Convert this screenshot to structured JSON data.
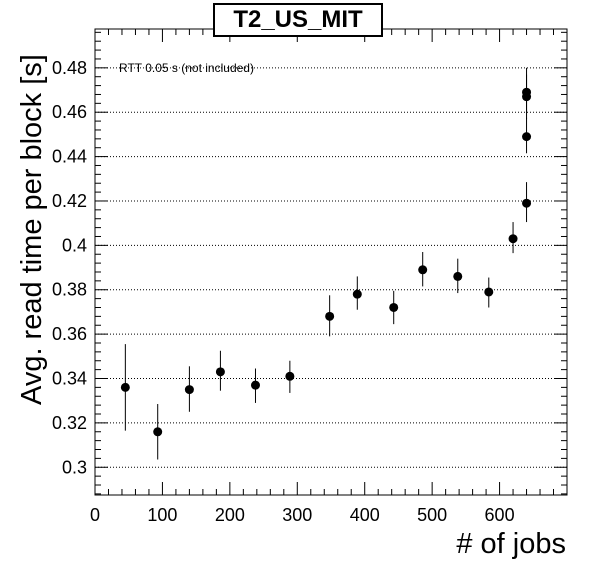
{
  "chart_data": {
    "type": "scatter",
    "title": "T2_US_MIT",
    "xlabel": "# of jobs",
    "ylabel": "Avg. read time per block [s]",
    "annotation": "RTT 0.05 s (not included)",
    "xlim": [
      0,
      700
    ],
    "ylim": [
      0.2875,
      0.4975
    ],
    "x_ticks": [
      "0",
      "100",
      "200",
      "300",
      "400",
      "500",
      "600"
    ],
    "y_ticks": [
      "0.3",
      "0.32",
      "0.34",
      "0.36",
      "0.38",
      "0.4",
      "0.42",
      "0.44",
      "0.46",
      "0.48"
    ],
    "grid": "horizontal dotted",
    "series": [
      {
        "points": [
          {
            "x": 45,
            "y": 0.336,
            "yerr": [
              0.3165,
              0.3555
            ]
          },
          {
            "x": 93,
            "y": 0.316,
            "yerr": [
              0.3035,
              0.3285
            ]
          },
          {
            "x": 140,
            "y": 0.335,
            "yerr": [
              0.325,
              0.3455
            ]
          },
          {
            "x": 186,
            "y": 0.343,
            "yerr": [
              0.3345,
              0.3525
            ]
          },
          {
            "x": 238,
            "y": 0.337,
            "yerr": [
              0.329,
              0.3445
            ]
          },
          {
            "x": 289,
            "y": 0.341,
            "yerr": [
              0.3335,
              0.348
            ]
          },
          {
            "x": 348,
            "y": 0.368,
            "yerr": [
              0.359,
              0.3775
            ]
          },
          {
            "x": 389,
            "y": 0.378,
            "yerr": [
              0.371,
              0.386
            ]
          },
          {
            "x": 443,
            "y": 0.372,
            "yerr": [
              0.3645,
              0.3795
            ]
          },
          {
            "x": 486,
            "y": 0.389,
            "yerr": [
              0.3815,
              0.397
            ]
          },
          {
            "x": 538,
            "y": 0.386,
            "yerr": [
              0.3785,
              0.394
            ]
          },
          {
            "x": 584,
            "y": 0.379,
            "yerr": [
              0.372,
              0.3855
            ]
          },
          {
            "x": 620,
            "y": 0.403,
            "yerr": [
              0.3965,
              0.4105
            ]
          },
          {
            "x": 640,
            "y": 0.419,
            "yerr": [
              0.4105,
              0.4285
            ]
          },
          {
            "x": 640,
            "y": 0.449,
            "yerr": [
              0.4415,
              0.4575
            ]
          },
          {
            "x": 640,
            "y": 0.467,
            "yerr": [
              0.457,
              0.477
            ]
          },
          {
            "x": 640,
            "y": 0.469,
            "yerr": [
              0.4605,
              0.48
            ]
          }
        ]
      }
    ]
  }
}
